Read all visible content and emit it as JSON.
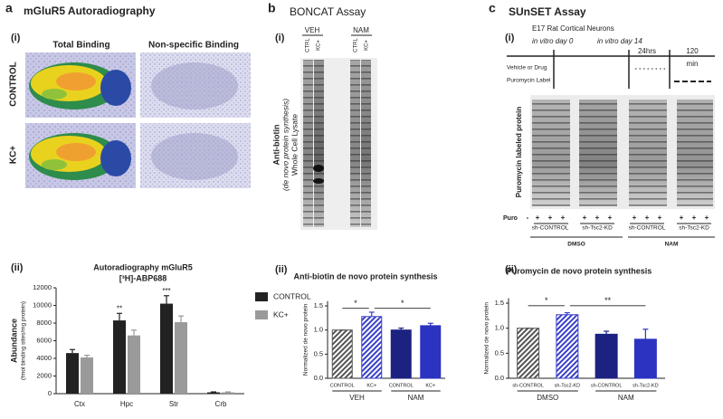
{
  "figure": {
    "panel_a": {
      "letter": "a",
      "title": "mGluR5 Autoradiography",
      "sub": "(i)",
      "columns": [
        "Total Binding",
        "Non-specific Binding"
      ],
      "rows": [
        "CONTROL",
        "KC+"
      ],
      "sub2": "(ii)"
    },
    "panel_b": {
      "letter": "b",
      "title": "BONCAT Assay",
      "sub": "(i)",
      "groups": [
        "VEH",
        "NAM"
      ],
      "lanes": [
        "CTRL",
        "KC+",
        "CTRL",
        "KC+"
      ],
      "label": [
        "Anti-biotin",
        "(de novo protein synthesis)",
        "Whole Cell Lysate"
      ],
      "sub2": "(ii)"
    },
    "panel_c": {
      "letter": "c",
      "title": "SUnSET Assay",
      "sub": "(i)",
      "timeline": {
        "title": "E17 Rat Cortical Neurons",
        "day0": "in vitro day 0",
        "day14": "in vitro day 14",
        "t1": "24hrs",
        "t2": "120",
        "t2b": "min",
        "rows": [
          "Vehicle or Drug",
          "Puromycin Label"
        ]
      },
      "blot_label": "Puromycin labeled protein",
      "puro": "Puro",
      "minus": "-",
      "plus": "+",
      "groups": [
        "sh-CONTROL",
        "sh-Tsc2-KD",
        "sh-CONTROL",
        "sh-Tsc2-KD"
      ],
      "treatments": [
        "DMSO",
        "NAM"
      ],
      "sub2": "(ii)"
    }
  },
  "chart_data": [
    {
      "type": "bar",
      "title": "Autoradiography mGluR5",
      "subtitle": "[³H]-ABP688",
      "y_label": "Abundance",
      "y_label_sub": "(fmol binding sites/mg protein)",
      "categories": [
        "Ctx",
        "Hpc",
        "Str",
        "Crb"
      ],
      "series": [
        {
          "name": "CONTROL",
          "color": "#222222",
          "values": [
            4600,
            8300,
            10200,
            150
          ],
          "errors": [
            400,
            800,
            900,
            50
          ]
        },
        {
          "name": "KC+",
          "color": "#9a9a9a",
          "values": [
            4100,
            6600,
            8100,
            150
          ],
          "errors": [
            250,
            600,
            700,
            50
          ]
        }
      ],
      "annotations": [
        "**",
        "***"
      ],
      "legend": "right",
      "ylim": [
        0,
        12000
      ],
      "yticks": [
        0,
        2000,
        4000,
        6000,
        8000,
        10000,
        12000
      ]
    },
    {
      "type": "bar",
      "title": "Anti-biotin de novo protein synthesis",
      "y_label": "Normalized de novo protein",
      "categories": [
        "CONTROL",
        "KC+",
        "CONTROL",
        "KC+"
      ],
      "groups": [
        "VEH",
        "NAM"
      ],
      "values": [
        1.0,
        1.28,
        1.0,
        1.09
      ],
      "errors": [
        0,
        0.09,
        0.04,
        0.05
      ],
      "colors": [
        "#555555",
        "#3a40c8",
        "#1c2280",
        "#2c33c0"
      ],
      "hatched": [
        true,
        true,
        false,
        false
      ],
      "annotations": [
        "*",
        "*"
      ],
      "ylim": [
        0,
        1.6
      ],
      "yticks": [
        {
          "value": 0,
          "label": "0.0"
        },
        {
          "value": 0.5,
          "label": "0.5"
        },
        {
          "value": 1,
          "label": "1.0"
        },
        {
          "value": 1.5,
          "label": "1.5"
        }
      ]
    },
    {
      "type": "bar",
      "title": "Puromycin de novo protein synthesis",
      "y_label": "Normalized de novo protein",
      "categories": [
        "sh-CONTROL",
        "sh-Tsc2-KD",
        "sh-CONTROL",
        "sh-Tsc2-KD"
      ],
      "groups": [
        "DMSO",
        "NAM"
      ],
      "values": [
        1.0,
        1.27,
        0.88,
        0.78
      ],
      "errors": [
        0,
        0.04,
        0.06,
        0.2
      ],
      "colors": [
        "#555555",
        "#3a40c8",
        "#1c2280",
        "#2c33c0"
      ],
      "hatched": [
        true,
        true,
        false,
        false
      ],
      "annotations": [
        "*",
        "**"
      ],
      "ylim": [
        0,
        1.6
      ],
      "yticks": [
        {
          "value": 0,
          "label": "0.0"
        },
        {
          "value": 0.5,
          "label": "0.5"
        },
        {
          "value": 1,
          "label": "1.0"
        },
        {
          "value": 1.5,
          "label": "1.5"
        }
      ]
    }
  ]
}
